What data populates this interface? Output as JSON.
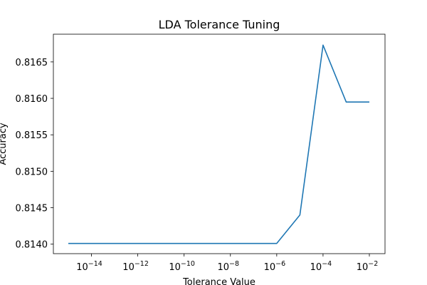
{
  "chart_data": {
    "type": "line",
    "title": "LDA Tolerance Tuning",
    "xlabel": "Tolerance Value",
    "ylabel": "Accuracy",
    "xscale": "log",
    "xlim": [
      1e-15,
      0.01
    ],
    "ylim": [
      0.81387,
      0.81688
    ],
    "grid": false,
    "x_ticks": [
      {
        "base": "10",
        "exp": "−14",
        "value": 1e-14
      },
      {
        "base": "10",
        "exp": "−12",
        "value": 1e-12
      },
      {
        "base": "10",
        "exp": "−10",
        "value": 1e-10
      },
      {
        "base": "10",
        "exp": "−8",
        "value": 1e-08
      },
      {
        "base": "10",
        "exp": "−6",
        "value": 1e-06
      },
      {
        "base": "10",
        "exp": "−4",
        "value": 0.0001
      },
      {
        "base": "10",
        "exp": "−2",
        "value": 0.01
      }
    ],
    "y_ticks": [
      {
        "label": "0.8140",
        "value": 0.814
      },
      {
        "label": "0.8145",
        "value": 0.8145
      },
      {
        "label": "0.8150",
        "value": 0.815
      },
      {
        "label": "0.8155",
        "value": 0.8155
      },
      {
        "label": "0.8160",
        "value": 0.816
      },
      {
        "label": "0.8165",
        "value": 0.8165
      }
    ],
    "series": [
      {
        "color": "#1f77b4",
        "x": [
          1e-15,
          1e-14,
          1e-13,
          1e-12,
          1e-11,
          1e-10,
          1e-09,
          1e-08,
          1e-07,
          1e-06,
          1e-05,
          0.0001,
          0.001,
          0.01
        ],
        "y": [
          0.81401,
          0.81401,
          0.81401,
          0.81401,
          0.81401,
          0.81401,
          0.81401,
          0.81401,
          0.81401,
          0.81401,
          0.8144,
          0.81673,
          0.81595,
          0.81595
        ]
      }
    ]
  }
}
